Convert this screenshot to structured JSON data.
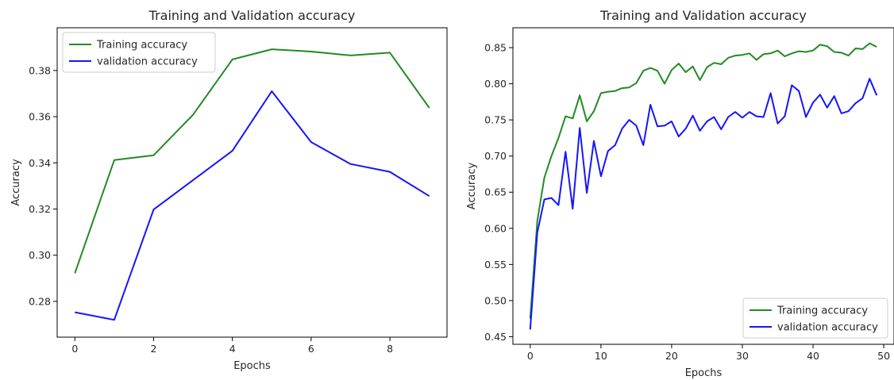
{
  "chart_data": [
    {
      "type": "line",
      "title": "Training and Validation accuracy",
      "xlabel": "Epochs",
      "ylabel": "Accuracy",
      "xlim": [
        -0.45,
        9.45
      ],
      "ylim": [
        0.2645,
        0.3985
      ],
      "xticks": [
        0,
        2,
        4,
        6,
        8
      ],
      "yticks": [
        0.28,
        0.3,
        0.32,
        0.34,
        0.36,
        0.38
      ],
      "ytick_format": 2,
      "legend_position": "upper-left",
      "series": [
        {
          "name": "Training accuracy",
          "color": "#228b22",
          "x": [
            0,
            1,
            2,
            3,
            4,
            5,
            6,
            7,
            8,
            9
          ],
          "values": [
            0.2922,
            0.3412,
            0.3433,
            0.3608,
            0.3848,
            0.3892,
            0.3882,
            0.3865,
            0.3877,
            0.3638
          ]
        },
        {
          "name": "validation accuracy",
          "color": "#1515ff",
          "x": [
            0,
            1,
            2,
            3,
            4,
            5,
            6,
            7,
            8,
            9
          ],
          "values": [
            0.2753,
            0.272,
            0.3198,
            0.3325,
            0.3452,
            0.371,
            0.349,
            0.3395,
            0.3361,
            0.3256
          ]
        }
      ]
    },
    {
      "type": "line",
      "title": "Training and Validation accuracy",
      "xlabel": "Epochs",
      "ylabel": "Accuracy",
      "xlim": [
        -2.45,
        51.45
      ],
      "ylim": [
        0.4395,
        0.8775
      ],
      "xticks": [
        0,
        10,
        20,
        30,
        40,
        50
      ],
      "yticks": [
        0.45,
        0.5,
        0.55,
        0.6,
        0.65,
        0.7,
        0.75,
        0.8,
        0.85
      ],
      "ytick_format": 2,
      "legend_position": "lower-right",
      "series": [
        {
          "name": "Training accuracy",
          "color": "#228b22",
          "x": [
            0,
            1,
            2,
            3,
            4,
            5,
            6,
            7,
            8,
            9,
            10,
            11,
            12,
            13,
            14,
            15,
            16,
            17,
            18,
            19,
            20,
            21,
            22,
            23,
            24,
            25,
            26,
            27,
            28,
            29,
            30,
            31,
            32,
            33,
            34,
            35,
            36,
            37,
            38,
            39,
            40,
            41,
            42,
            43,
            44,
            45,
            46,
            47,
            48,
            49
          ],
          "values": [
            0.475,
            0.61,
            0.67,
            0.7,
            0.725,
            0.755,
            0.752,
            0.784,
            0.748,
            0.762,
            0.787,
            0.789,
            0.79,
            0.794,
            0.795,
            0.801,
            0.818,
            0.822,
            0.818,
            0.8,
            0.819,
            0.828,
            0.816,
            0.824,
            0.805,
            0.823,
            0.829,
            0.827,
            0.836,
            0.839,
            0.84,
            0.842,
            0.833,
            0.841,
            0.842,
            0.846,
            0.838,
            0.842,
            0.845,
            0.844,
            0.846,
            0.854,
            0.852,
            0.844,
            0.843,
            0.839,
            0.849,
            0.848,
            0.856,
            0.851
          ]
        },
        {
          "name": "validation accuracy",
          "color": "#1515ff",
          "x": [
            0,
            1,
            2,
            3,
            4,
            5,
            6,
            7,
            8,
            9,
            10,
            11,
            12,
            13,
            14,
            15,
            16,
            17,
            18,
            19,
            20,
            21,
            22,
            23,
            24,
            25,
            26,
            27,
            28,
            29,
            30,
            31,
            32,
            33,
            34,
            35,
            36,
            37,
            38,
            39,
            40,
            41,
            42,
            43,
            44,
            45,
            46,
            47,
            48,
            49
          ],
          "values": [
            0.46,
            0.594,
            0.64,
            0.642,
            0.632,
            0.706,
            0.627,
            0.739,
            0.649,
            0.721,
            0.672,
            0.707,
            0.715,
            0.738,
            0.75,
            0.742,
            0.715,
            0.771,
            0.741,
            0.742,
            0.748,
            0.727,
            0.738,
            0.756,
            0.735,
            0.748,
            0.754,
            0.737,
            0.754,
            0.761,
            0.753,
            0.761,
            0.755,
            0.754,
            0.787,
            0.745,
            0.755,
            0.798,
            0.79,
            0.754,
            0.774,
            0.785,
            0.767,
            0.783,
            0.759,
            0.762,
            0.773,
            0.78,
            0.807,
            0.784
          ]
        }
      ]
    }
  ]
}
